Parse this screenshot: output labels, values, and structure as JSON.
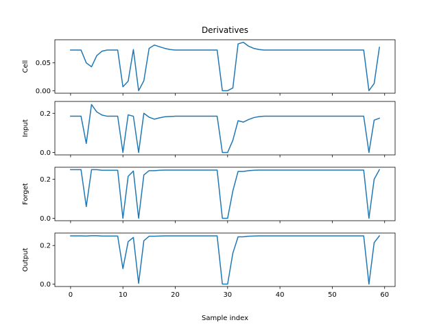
{
  "chart_data": {
    "type": "line",
    "title": "Derivatives",
    "xlabel": "Sample index",
    "xlim": [
      -3,
      62
    ],
    "x_ticks": [
      0,
      10,
      20,
      30,
      40,
      50,
      60
    ],
    "line_color": "#1f77b4",
    "grid": false,
    "x": [
      0,
      1,
      2,
      3,
      4,
      5,
      6,
      7,
      8,
      9,
      10,
      11,
      12,
      13,
      14,
      15,
      16,
      17,
      18,
      19,
      20,
      21,
      22,
      23,
      24,
      25,
      26,
      27,
      28,
      29,
      30,
      31,
      32,
      33,
      34,
      35,
      36,
      37,
      38,
      39,
      40,
      41,
      42,
      43,
      44,
      45,
      46,
      47,
      48,
      49,
      50,
      51,
      52,
      53,
      54,
      55,
      56,
      57,
      58,
      59
    ],
    "panels": [
      {
        "ylabel": "Cell",
        "ylim": [
          -0.0045,
          0.0915
        ],
        "y_ticks": [
          0.0,
          0.05
        ],
        "y_tick_labels": [
          "0.00",
          "0.05"
        ],
        "values": [
          0.073,
          0.073,
          0.073,
          0.05,
          0.043,
          0.063,
          0.071,
          0.073,
          0.073,
          0.073,
          0.007,
          0.017,
          0.074,
          0.0,
          0.018,
          0.076,
          0.082,
          0.079,
          0.076,
          0.074,
          0.073,
          0.073,
          0.073,
          0.073,
          0.073,
          0.073,
          0.073,
          0.073,
          0.073,
          0.0,
          0.0,
          0.005,
          0.084,
          0.087,
          0.08,
          0.076,
          0.074,
          0.073,
          0.073,
          0.073,
          0.073,
          0.073,
          0.073,
          0.073,
          0.073,
          0.073,
          0.073,
          0.073,
          0.073,
          0.073,
          0.073,
          0.073,
          0.073,
          0.073,
          0.073,
          0.073,
          0.073,
          0.0,
          0.013,
          0.078
        ]
      },
      {
        "ylabel": "Input",
        "ylim": [
          -0.0124,
          0.2604
        ],
        "y_ticks": [
          0.0,
          0.2
        ],
        "y_tick_labels": [
          "0.0",
          "0.2"
        ],
        "values": [
          0.185,
          0.185,
          0.185,
          0.046,
          0.245,
          0.207,
          0.191,
          0.185,
          0.185,
          0.185,
          0.0,
          0.192,
          0.185,
          0.0,
          0.2,
          0.18,
          0.17,
          0.177,
          0.182,
          0.184,
          0.185,
          0.185,
          0.185,
          0.185,
          0.185,
          0.185,
          0.185,
          0.185,
          0.185,
          0.0,
          0.0,
          0.062,
          0.162,
          0.155,
          0.168,
          0.178,
          0.183,
          0.185,
          0.185,
          0.185,
          0.185,
          0.185,
          0.185,
          0.185,
          0.185,
          0.185,
          0.185,
          0.185,
          0.185,
          0.185,
          0.185,
          0.185,
          0.185,
          0.185,
          0.185,
          0.185,
          0.185,
          0.0,
          0.165,
          0.175
        ]
      },
      {
        "ylabel": "Forget",
        "ylim": [
          -0.01245,
          0.26145
        ],
        "y_ticks": [
          0.0,
          0.2
        ],
        "y_tick_labels": [
          "0.0",
          "0.2"
        ],
        "values": [
          0.249,
          0.249,
          0.249,
          0.06,
          0.249,
          0.249,
          0.246,
          0.246,
          0.246,
          0.246,
          0.0,
          0.215,
          0.242,
          0.0,
          0.222,
          0.244,
          0.244,
          0.246,
          0.247,
          0.247,
          0.247,
          0.247,
          0.247,
          0.247,
          0.247,
          0.247,
          0.247,
          0.247,
          0.247,
          0.0,
          0.0,
          0.14,
          0.24,
          0.24,
          0.244,
          0.246,
          0.247,
          0.247,
          0.247,
          0.247,
          0.247,
          0.247,
          0.247,
          0.247,
          0.247,
          0.247,
          0.247,
          0.247,
          0.247,
          0.247,
          0.247,
          0.247,
          0.247,
          0.247,
          0.247,
          0.247,
          0.247,
          0.0,
          0.2,
          0.249
        ]
      },
      {
        "ylabel": "Output",
        "ylim": [
          -0.0126,
          0.2646
        ],
        "y_ticks": [
          0.0,
          0.2
        ],
        "y_tick_labels": [
          "0.0",
          "0.2"
        ],
        "values": [
          0.25,
          0.25,
          0.25,
          0.249,
          0.251,
          0.251,
          0.249,
          0.249,
          0.249,
          0.249,
          0.08,
          0.22,
          0.242,
          0.004,
          0.225,
          0.248,
          0.248,
          0.249,
          0.25,
          0.25,
          0.25,
          0.25,
          0.25,
          0.25,
          0.25,
          0.25,
          0.25,
          0.25,
          0.25,
          0.0,
          0.0,
          0.16,
          0.245,
          0.245,
          0.248,
          0.249,
          0.25,
          0.25,
          0.25,
          0.25,
          0.25,
          0.25,
          0.25,
          0.25,
          0.25,
          0.25,
          0.25,
          0.25,
          0.25,
          0.25,
          0.25,
          0.25,
          0.25,
          0.25,
          0.25,
          0.25,
          0.25,
          0.0,
          0.215,
          0.25
        ]
      }
    ]
  }
}
